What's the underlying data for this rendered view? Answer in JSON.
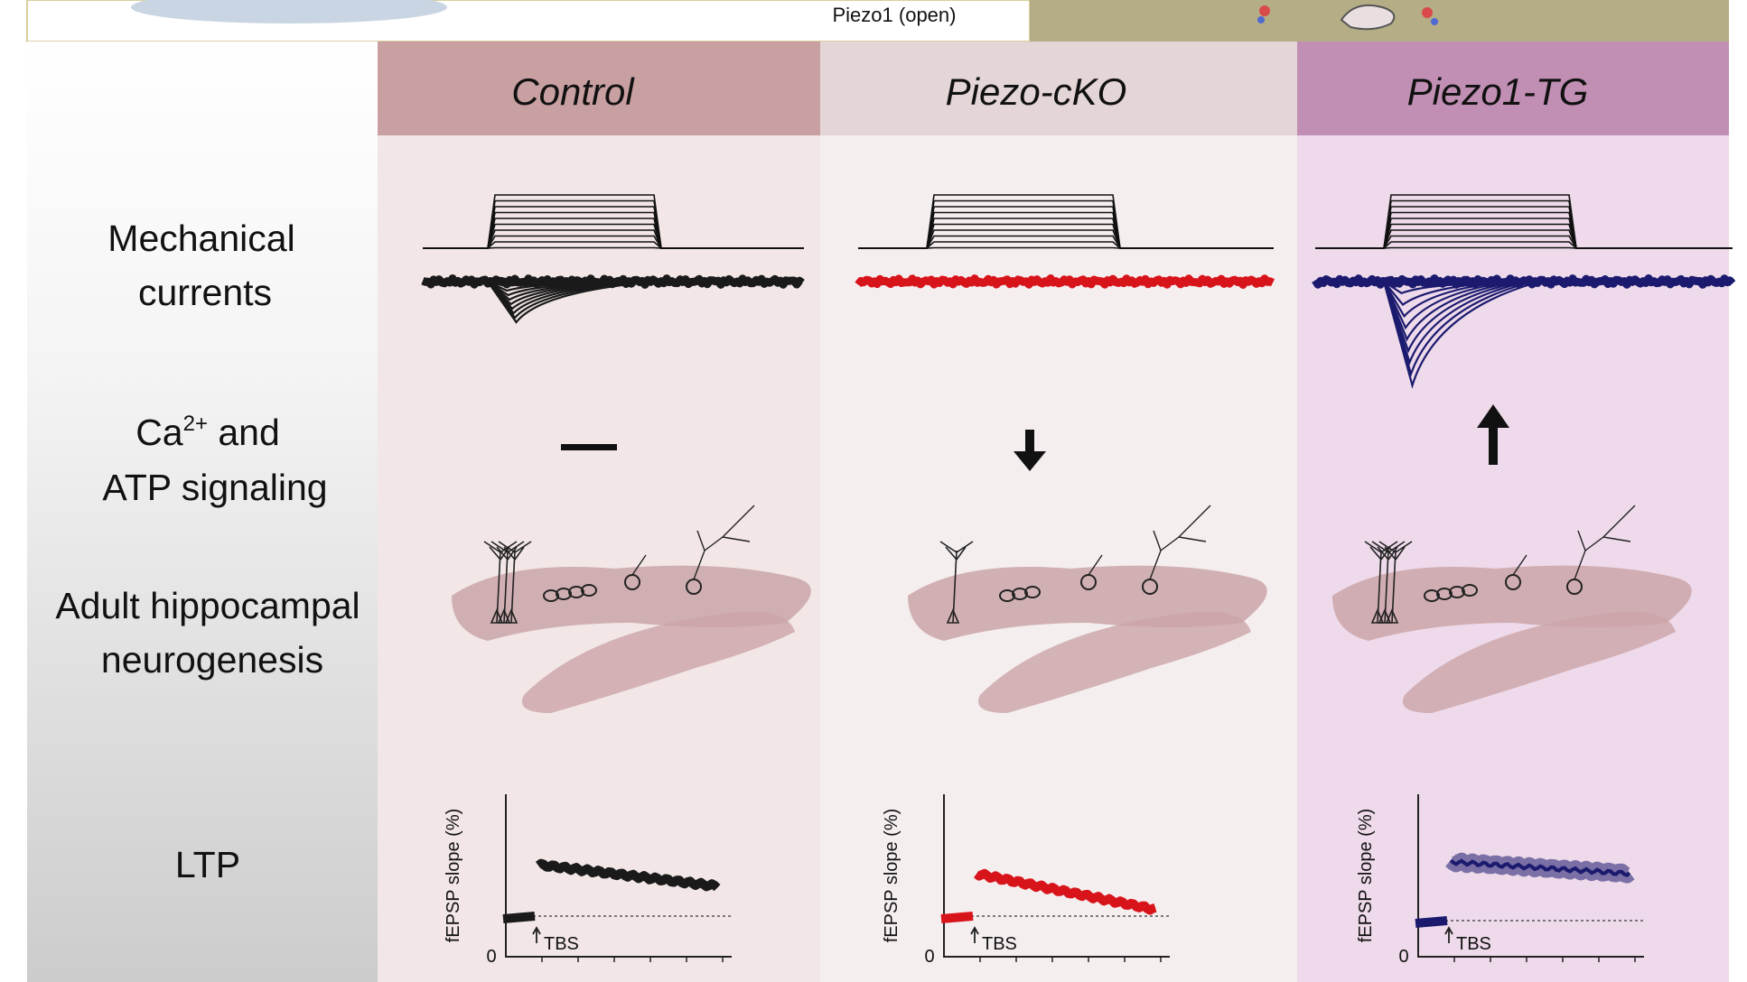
{
  "top_banner": {
    "caption": "Piezo1 (open)"
  },
  "columns": [
    {
      "title": "Control"
    },
    {
      "title": "Piezo-cKO"
    },
    {
      "title": "Piezo1-TG"
    }
  ],
  "rows": {
    "mechanical": {
      "line1": "Mechanical",
      "line2": "currents"
    },
    "signaling": {
      "line1_base": "Ca",
      "line1_sup": "2+",
      "line1_rest": " and",
      "line2": "ATP signaling"
    },
    "neurogenesis": {
      "line1": "Adult hippocampal",
      "line2": "neurogenesis"
    },
    "ltp": {
      "label": "LTP"
    }
  },
  "ltp_axes": {
    "ylabel": "fEPSP slope (%)",
    "zero_tick": "0",
    "stimulus": "TBS"
  },
  "colors": {
    "control_header": "#c9a0a2",
    "cko_header": "#e4d5d7",
    "tg_header": "#c08fb3",
    "control_bg": "#f2e6e6",
    "cko_bg": "#f5eeef",
    "tg_bg": "#eedaea",
    "control_trace": "#1a1a1a",
    "cko_trace": "#d8141b",
    "tg_trace": "#1b1a6e",
    "banner_olive": "#b5ad86",
    "hippocampus": "#caa4a8"
  },
  "signaling_change": [
    "none",
    "decrease",
    "increase"
  ]
}
